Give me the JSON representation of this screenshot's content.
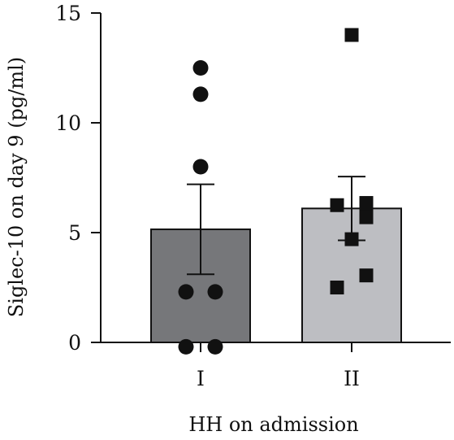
{
  "chart_data": {
    "type": "bar",
    "title": "",
    "xlabel": "HH on admission",
    "ylabel": "Siglec-10 on day 9 (pg/ml)",
    "ylim": [
      0,
      15
    ],
    "yticks": [
      0,
      5,
      10,
      15
    ],
    "grid": false,
    "legend": "none",
    "categories": [
      "I",
      "II"
    ],
    "values": [
      5.15,
      6.1
    ],
    "error_sem": [
      2.05,
      1.45
    ],
    "bar_colors": [
      "#76777a",
      "#bdbec2"
    ],
    "points": [
      {
        "category": "I",
        "marker": "circle",
        "values": [
          12.5,
          11.3,
          8.0,
          2.3,
          2.3,
          -0.2,
          -0.2
        ]
      },
      {
        "category": "II",
        "marker": "square",
        "values": [
          14.0,
          6.25,
          6.35,
          6.0,
          5.7,
          4.7,
          3.05,
          2.5
        ]
      }
    ]
  }
}
